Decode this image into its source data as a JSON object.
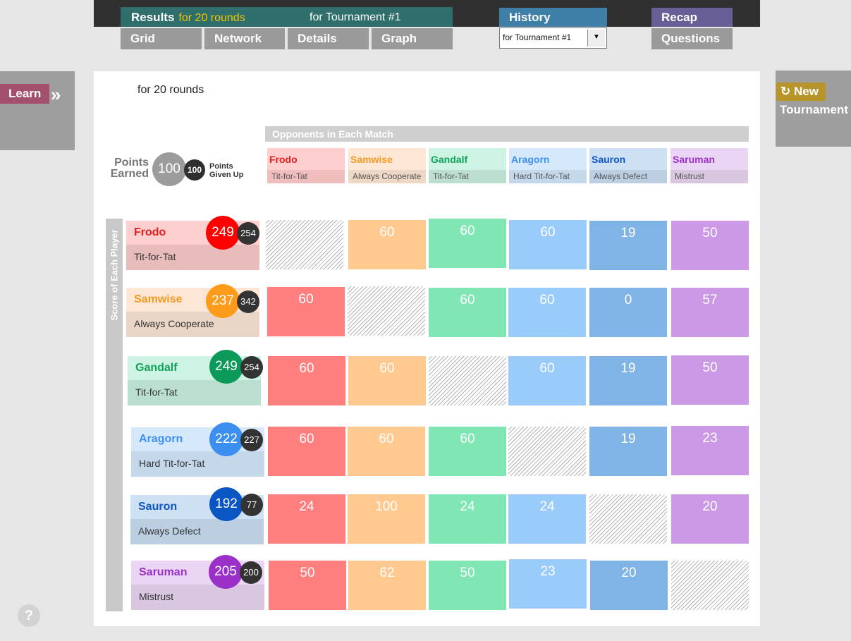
{
  "nav": {
    "results_label": "Results",
    "results_rounds": "for 20 rounds",
    "results_tournament": "for Tournament #1",
    "subtabs": [
      "Grid",
      "Network",
      "Details",
      "Graph"
    ],
    "history_label": "History",
    "history_select": "for Tournament #1",
    "recap_label": "Recap",
    "questions_label": "Questions"
  },
  "side": {
    "learn_label": "Learn",
    "learn_chevron": "»",
    "new_label": "New",
    "new_icon": "↻",
    "tournament_label": "Tournament",
    "help_label": "?"
  },
  "main": {
    "subtitle": "for 20 rounds",
    "legend": {
      "earned_line1": "Points",
      "earned_line2": "Earned",
      "earned_value": "100",
      "given_value": "100",
      "given_line1": "Points",
      "given_line2": "Given Up"
    },
    "opponents_title": "Opponents in Each Match",
    "score_label": "Score of Each Player",
    "players": [
      {
        "name": "Frodo",
        "strategy": "Tit-for-Tat",
        "earned": "249",
        "given": "254",
        "color": "#ff0000"
      },
      {
        "name": "Samwise",
        "strategy": "Always Cooperate",
        "earned": "237",
        "given": "342",
        "color": "#ff9b1a"
      },
      {
        "name": "Gandalf",
        "strategy": "Tit-for-Tat",
        "earned": "249",
        "given": "254",
        "color": "#0b9a5a"
      },
      {
        "name": "Aragorn",
        "strategy": "Hard Tit-for-Tat",
        "earned": "222",
        "given": "227",
        "color": "#3b8ff0"
      },
      {
        "name": "Sauron",
        "strategy": "Always Defect",
        "earned": "192",
        "given": "77",
        "color": "#0a55c4"
      },
      {
        "name": "Saruman",
        "strategy": "Mistrust",
        "earned": "205",
        "given": "200",
        "color": "#9a30c8"
      }
    ],
    "opponents": [
      {
        "name": "Frodo",
        "strategy": "Tit-for-Tat"
      },
      {
        "name": "Samwise",
        "strategy": "Always Cooperate"
      },
      {
        "name": "Gandalf",
        "strategy": "Tit-for-Tat"
      },
      {
        "name": "Aragorn",
        "strategy": "Hard Tit-for-Tat"
      },
      {
        "name": "Sauron",
        "strategy": "Always Defect"
      },
      {
        "name": "Saruman",
        "strategy": "Mistrust"
      }
    ],
    "grid": [
      [
        "",
        "60",
        "60",
        "60",
        "19",
        "50"
      ],
      [
        "60",
        "",
        "60",
        "60",
        "0",
        "57"
      ],
      [
        "60",
        "60",
        "",
        "60",
        "19",
        "50"
      ],
      [
        "60",
        "60",
        "60",
        "",
        "19",
        "23"
      ],
      [
        "24",
        "100",
        "24",
        "24",
        "",
        "20"
      ],
      [
        "50",
        "62",
        "50",
        "23",
        "20",
        ""
      ]
    ],
    "cell_colors": [
      "#ff7f7f",
      "#ffc98f",
      "#7fe6b4",
      "#99ccfb",
      "#80b3e6",
      "#cc99e6"
    ]
  }
}
